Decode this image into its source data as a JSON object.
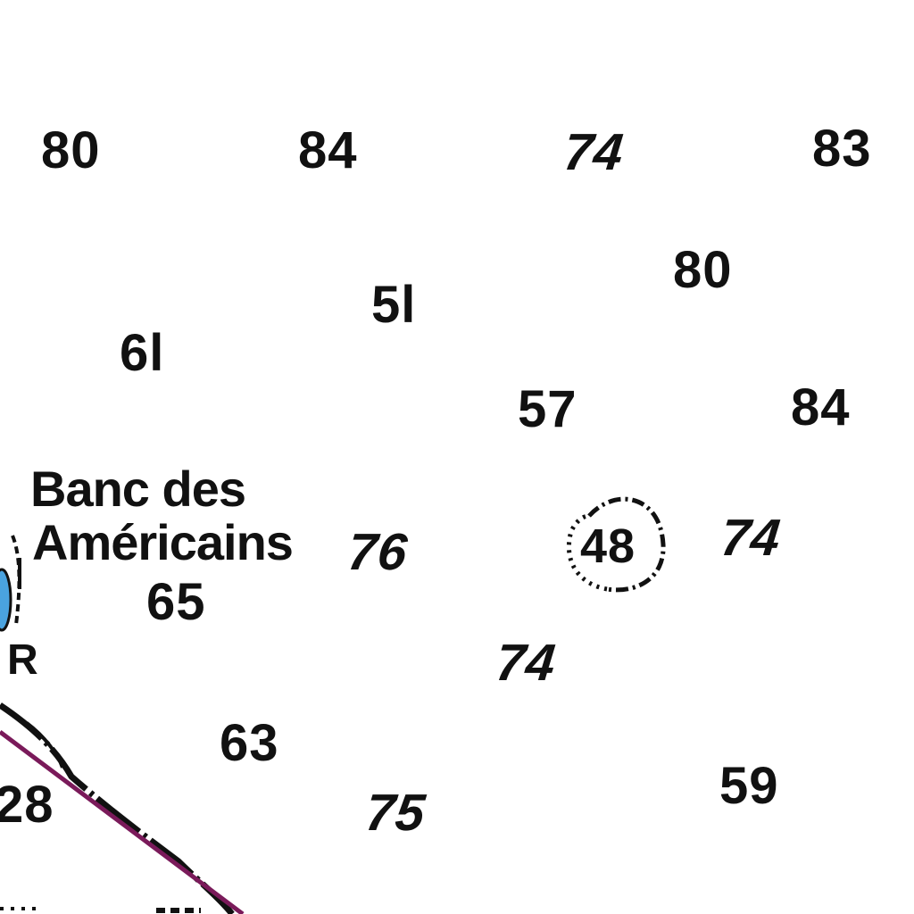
{
  "chart": {
    "feature_name_line1": "Banc des",
    "feature_name_line2": "Américains",
    "light_label": "R",
    "circled_sounding": "48",
    "soundings": [
      "80",
      "84",
      "74",
      "83",
      "80",
      "5l",
      "6l",
      "57",
      "84",
      "76",
      "74",
      "65",
      "74",
      "63",
      "59",
      "28",
      "75"
    ],
    "colors": {
      "ink": "#111111",
      "route_line": "#7a1a5a",
      "light_symbol": "#4aa3df",
      "water": "#ffffff"
    },
    "icons": [
      "light-symbol-icon",
      "danger-circle-icon"
    ]
  }
}
